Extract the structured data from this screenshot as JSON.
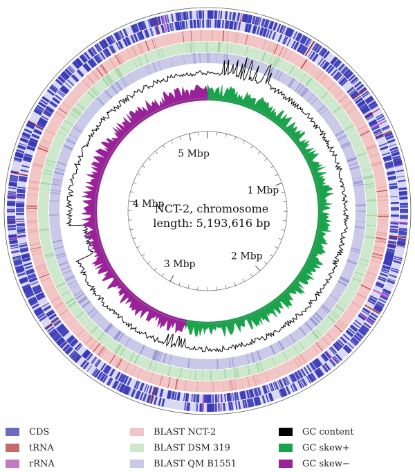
{
  "center": {
    "line1": "NCT-2, chromosome",
    "line2": "length: 5,193,616 bp"
  },
  "scale_labels": [
    "1 Mbp",
    "2 Mbp",
    "3 Mbp",
    "4 Mbp",
    "5 Mbp"
  ],
  "genome": {
    "length_bp": 5193616,
    "scale_mbp": [
      1,
      2,
      3,
      4,
      5
    ]
  },
  "colors": {
    "cds": "#3a3ab8",
    "trna": "#b02020",
    "rrna": "#cc55cc",
    "blast_nct2": "#f2c6c6",
    "blast_dsm319": "#cde8cd",
    "blast_qmb1551": "#cacae8",
    "gc_content": "#000000",
    "gc_skew_pos": "#19a34a",
    "gc_skew_neg": "#992299"
  },
  "legend": [
    {
      "label": "CDS",
      "color": "#6b6bc2"
    },
    {
      "label": "tRNA",
      "color": "#c46a6a"
    },
    {
      "label": "rRNA",
      "color": "#c27ac2"
    },
    {
      "label": "BLAST NCT-2",
      "color": "#f2c6c6"
    },
    {
      "label": "BLAST DSM 319",
      "color": "#cde8cd"
    },
    {
      "label": "BLAST QM B1551",
      "color": "#cacae8"
    },
    {
      "label": "GC content",
      "color": "#000000"
    },
    {
      "label": "GC skew+",
      "color": "#19a34a"
    },
    {
      "label": "GC skew−",
      "color": "#992299"
    }
  ]
}
